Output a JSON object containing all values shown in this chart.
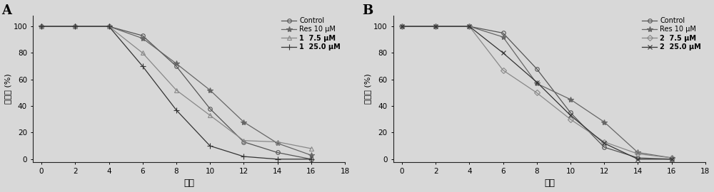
{
  "panel_A": {
    "label": "A",
    "series": [
      {
        "name": "Control",
        "marker": "o",
        "markersize": 4,
        "color": "#555555",
        "linestyle": "-",
        "markerfilled": false,
        "x": [
          0,
          2,
          4,
          6,
          8,
          10,
          12,
          14,
          16
        ],
        "y": [
          100,
          100,
          100,
          93,
          70,
          38,
          13,
          5,
          0
        ]
      },
      {
        "name": "Res 10 μM",
        "marker": "*",
        "markersize": 6,
        "color": "#666666",
        "linestyle": "-",
        "markerfilled": true,
        "x": [
          0,
          2,
          4,
          6,
          8,
          10,
          12,
          14,
          16
        ],
        "y": [
          100,
          100,
          100,
          91,
          72,
          52,
          28,
          12,
          3
        ]
      },
      {
        "name": "1  7.5 μM",
        "marker": "^",
        "markersize": 4,
        "color": "#888888",
        "linestyle": "-",
        "markerfilled": false,
        "x": [
          0,
          2,
          4,
          6,
          8,
          10,
          12,
          14,
          16
        ],
        "y": [
          100,
          100,
          100,
          80,
          52,
          33,
          14,
          13,
          8
        ]
      },
      {
        "name": "1  25.0 μM",
        "marker": "+",
        "markersize": 6,
        "color": "#333333",
        "linestyle": "-",
        "markerfilled": true,
        "x": [
          0,
          2,
          4,
          6,
          8,
          10,
          12,
          14,
          16
        ],
        "y": [
          100,
          100,
          100,
          70,
          37,
          10,
          2,
          0,
          0
        ]
      }
    ],
    "xlabel": "代数",
    "ylabel": "生存率 (%)",
    "xlim": [
      -0.5,
      18
    ],
    "ylim": [
      -2,
      108
    ],
    "xticks": [
      0,
      2,
      4,
      6,
      8,
      10,
      12,
      14,
      16,
      18
    ],
    "yticks": [
      0,
      20,
      40,
      60,
      80,
      100
    ]
  },
  "panel_B": {
    "label": "B",
    "series": [
      {
        "name": "Control",
        "marker": "o",
        "markersize": 4,
        "color": "#555555",
        "linestyle": "-",
        "markerfilled": false,
        "x": [
          0,
          2,
          4,
          6,
          8,
          10,
          12,
          14,
          16
        ],
        "y": [
          100,
          100,
          100,
          95,
          68,
          35,
          9,
          1,
          0
        ]
      },
      {
        "name": "Res 10 μM",
        "marker": "*",
        "markersize": 6,
        "color": "#666666",
        "linestyle": "-",
        "markerfilled": true,
        "x": [
          0,
          2,
          4,
          6,
          8,
          10,
          12,
          14,
          16
        ],
        "y": [
          100,
          100,
          100,
          92,
          57,
          45,
          28,
          5,
          1
        ]
      },
      {
        "name": "2  7.5 μM",
        "marker": "D",
        "markersize": 4,
        "color": "#888888",
        "linestyle": "-",
        "markerfilled": false,
        "x": [
          0,
          2,
          4,
          6,
          8,
          10,
          12,
          14,
          16
        ],
        "y": [
          100,
          100,
          100,
          67,
          50,
          30,
          13,
          4,
          1
        ]
      },
      {
        "name": "2  25.0 μM",
        "marker": "x",
        "markersize": 5,
        "color": "#333333",
        "linestyle": "-",
        "markerfilled": true,
        "x": [
          0,
          2,
          4,
          6,
          8,
          10,
          12,
          14,
          16
        ],
        "y": [
          100,
          100,
          100,
          80,
          58,
          33,
          12,
          0,
          0
        ]
      }
    ],
    "xlabel": "代数",
    "ylabel": "生存率 (%)",
    "xlim": [
      -0.5,
      18
    ],
    "ylim": [
      -2,
      108
    ],
    "xticks": [
      0,
      2,
      4,
      6,
      8,
      10,
      12,
      14,
      16,
      18
    ],
    "yticks": [
      0,
      20,
      40,
      60,
      80,
      100
    ]
  },
  "background_color": "#d8d8d8",
  "fig_width": 10.0,
  "fig_height": 2.7
}
